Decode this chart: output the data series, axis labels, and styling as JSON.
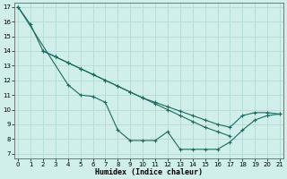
{
  "title": "",
  "xlabel": "Humidex (Indice chaleur)",
  "ylabel": "",
  "bg_color": "#d0eeea",
  "grid_color": "#b8ddd8",
  "line_color": "#1a6b60",
  "x_ticks": [
    0,
    1,
    2,
    3,
    4,
    5,
    6,
    7,
    8,
    9,
    10,
    11,
    12,
    13,
    14,
    15,
    16,
    17,
    18,
    19,
    20,
    21
  ],
  "y_ticks": [
    7,
    8,
    9,
    10,
    11,
    12,
    13,
    14,
    15,
    16,
    17
  ],
  "xlim": [
    -0.3,
    21.3
  ],
  "ylim": [
    6.7,
    17.3
  ],
  "line1_x": [
    0,
    1,
    2,
    3,
    4,
    5,
    6,
    7,
    8,
    9,
    10,
    11,
    12,
    13,
    14,
    15,
    16,
    17
  ],
  "line1_y": [
    17.0,
    15.8,
    14.0,
    13.6,
    13.2,
    12.8,
    12.4,
    12.0,
    11.6,
    11.2,
    10.8,
    10.4,
    10.0,
    9.6,
    9.2,
    8.8,
    8.5,
    8.2
  ],
  "line2_x": [
    0,
    4,
    5,
    6,
    7,
    8,
    9,
    10,
    11,
    12,
    13,
    14,
    15,
    16,
    17,
    18,
    19,
    20,
    21
  ],
  "line2_y": [
    17.0,
    11.7,
    11.0,
    10.9,
    10.5,
    8.6,
    7.9,
    7.9,
    7.9,
    8.5,
    7.3,
    7.3,
    7.3,
    7.3,
    7.8,
    8.6,
    9.3,
    9.6,
    9.7
  ],
  "line3_x": [
    2,
    3,
    4,
    5,
    6,
    7,
    8,
    9,
    10,
    11,
    12,
    13,
    14,
    15,
    16,
    17,
    18,
    19,
    20,
    21
  ],
  "line3_y": [
    14.0,
    13.6,
    13.2,
    12.8,
    12.4,
    12.0,
    11.6,
    11.2,
    10.8,
    10.5,
    10.2,
    9.9,
    9.6,
    9.3,
    9.0,
    8.8,
    9.6,
    9.8,
    9.8,
    9.7
  ]
}
